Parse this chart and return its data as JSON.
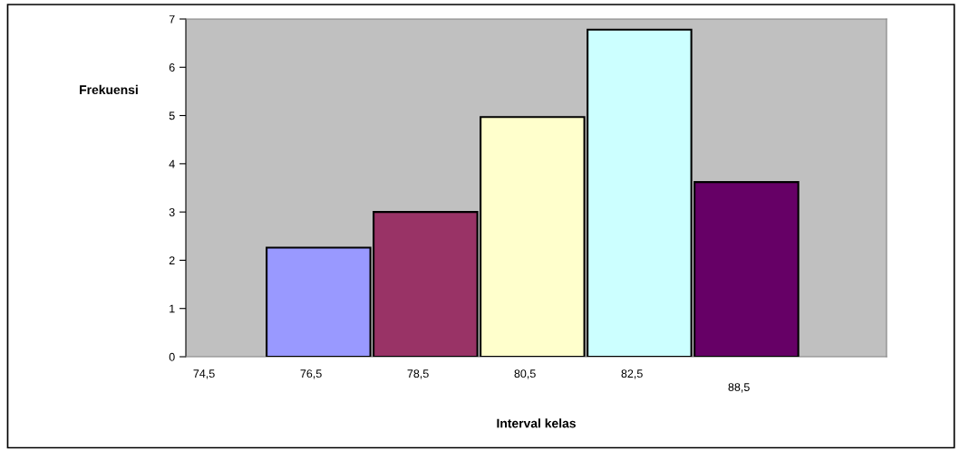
{
  "chart_data": {
    "type": "bar",
    "xlabel": "Interval kelas",
    "ylabel": "Frekuensi",
    "categories": [
      "74,5",
      "76,5",
      "78,5",
      "80,5",
      "82,5",
      "88,5"
    ],
    "values": [
      null,
      2.26,
      3.0,
      4.97,
      6.78,
      3.62
    ],
    "colors": [
      "#9999ff",
      "#9999ff",
      "#993366",
      "#ffffcc",
      "#ccffff",
      "#660066"
    ],
    "ylim": [
      0,
      7
    ],
    "yticks": [
      0,
      1,
      2,
      3,
      4,
      5,
      6,
      7
    ],
    "grid": false,
    "legend": false
  }
}
